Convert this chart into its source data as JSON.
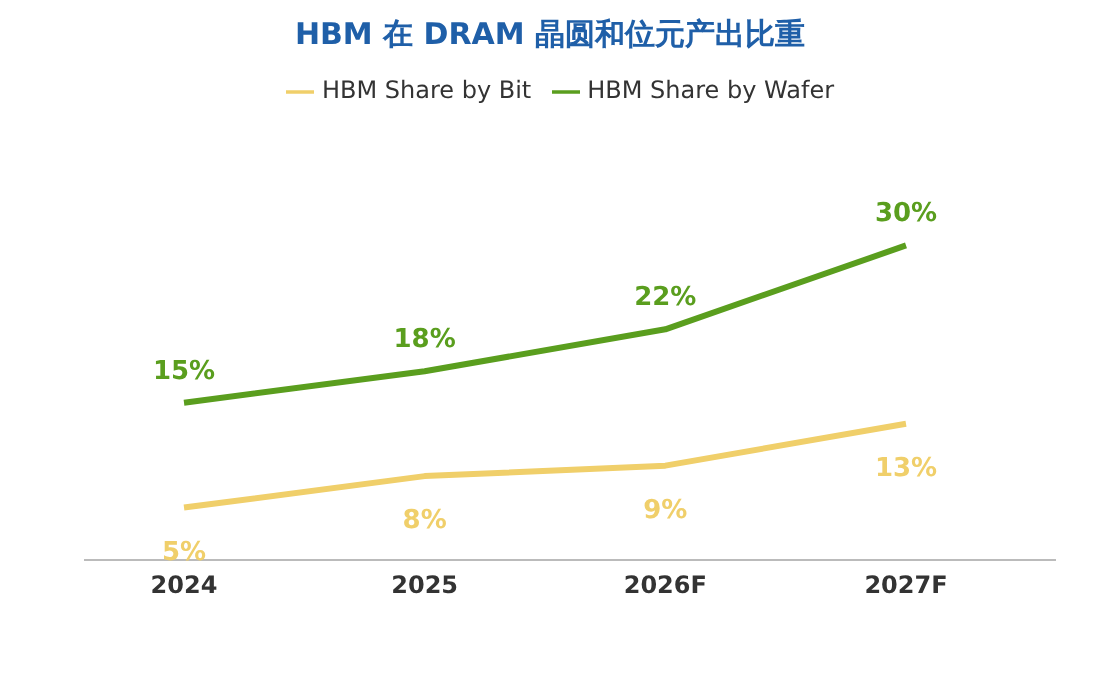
{
  "chart_data": {
    "type": "line",
    "title": "HBM 在 DRAM 晶圆和位元产出比重",
    "categories": [
      "2024",
      "2025",
      "2026F",
      "2027F"
    ],
    "legend": "top",
    "series": [
      {
        "name": "HBM Share by Wafer",
        "color": "#5a9e1e",
        "values": [
          15,
          18,
          22,
          30
        ],
        "value_labels": [
          "15%",
          "18%",
          "22%",
          "30%"
        ]
      },
      {
        "name": "HBM Share by Bit",
        "color": "#f0cf6a",
        "values": [
          5,
          8,
          9,
          13
        ],
        "value_labels": [
          "5%",
          "8%",
          "9%",
          "13%"
        ]
      }
    ]
  }
}
